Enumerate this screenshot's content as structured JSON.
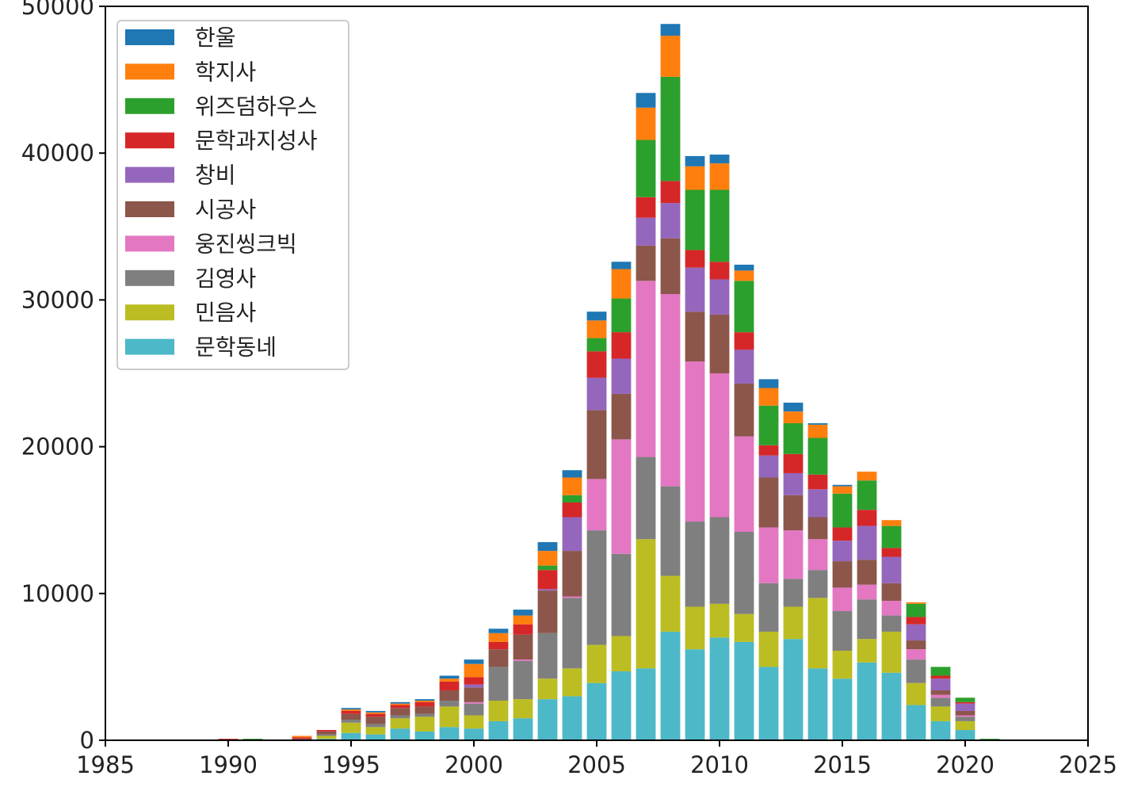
{
  "chart_data": {
    "type": "bar",
    "stacked": true,
    "x": [
      1990,
      1991,
      1993,
      1994,
      1995,
      1996,
      1997,
      1998,
      1999,
      2000,
      2001,
      2002,
      2003,
      2004,
      2005,
      2006,
      2007,
      2008,
      2009,
      2010,
      2011,
      2012,
      2013,
      2014,
      2015,
      2016,
      2017,
      2018,
      2019,
      2020,
      2021
    ],
    "xlim": [
      1985,
      2025
    ],
    "ylim": [
      0,
      50000
    ],
    "xticks": [
      1985,
      1990,
      1995,
      2000,
      2005,
      2010,
      2015,
      2020,
      2025
    ],
    "yticks": [
      0,
      10000,
      20000,
      30000,
      40000,
      50000
    ],
    "grid": false,
    "legend_position": "upper-left",
    "series": [
      {
        "name": "문학동네",
        "color": "#4db8c8",
        "values": [
          0,
          0,
          0,
          100,
          500,
          400,
          800,
          600,
          900,
          800,
          1300,
          1500,
          2800,
          3000,
          3900,
          4700,
          4900,
          7400,
          6200,
          7000,
          6700,
          5000,
          6900,
          4900,
          4200,
          5300,
          4600,
          2400,
          1300,
          700,
          0
        ]
      },
      {
        "name": "민음사",
        "color": "#bcbd22",
        "values": [
          0,
          0,
          0,
          200,
          700,
          500,
          700,
          1000,
          1400,
          900,
          1400,
          1300,
          1400,
          1900,
          2600,
          2400,
          8800,
          3800,
          2900,
          2300,
          1900,
          2400,
          2200,
          4800,
          1900,
          1600,
          2800,
          1500,
          1000,
          600,
          0
        ]
      },
      {
        "name": "김영사",
        "color": "#7f7f7f",
        "values": [
          0,
          0,
          0,
          100,
          200,
          200,
          200,
          200,
          400,
          800,
          2300,
          2600,
          3100,
          4800,
          7800,
          5600,
          5600,
          6100,
          5800,
          5900,
          5600,
          3300,
          1900,
          1900,
          2700,
          2700,
          1100,
          1600,
          600,
          300,
          0
        ]
      },
      {
        "name": "웅진씽크빅",
        "color": "#e377c2",
        "values": [
          0,
          0,
          0,
          0,
          0,
          0,
          0,
          0,
          0,
          100,
          0,
          100,
          0,
          100,
          3500,
          7800,
          12000,
          13100,
          10900,
          9800,
          6500,
          3800,
          3300,
          2100,
          1600,
          1000,
          1000,
          700,
          200,
          100,
          0
        ]
      },
      {
        "name": "시공사",
        "color": "#8c564b",
        "values": [
          0,
          0,
          100,
          200,
          400,
          500,
          500,
          500,
          700,
          1000,
          1200,
          1700,
          2900,
          3100,
          4700,
          3100,
          2400,
          3800,
          3400,
          4000,
          3600,
          3400,
          2400,
          1500,
          1800,
          1700,
          1200,
          600,
          300,
          300,
          0
        ]
      },
      {
        "name": "창비",
        "color": "#9467bd",
        "values": [
          0,
          0,
          0,
          0,
          0,
          0,
          0,
          0,
          0,
          200,
          0,
          0,
          100,
          2300,
          2200,
          2400,
          1900,
          2400,
          3000,
          2400,
          2300,
          1500,
          1500,
          1900,
          1400,
          2300,
          1800,
          1100,
          800,
          500,
          0
        ]
      },
      {
        "name": "문학과지성사",
        "color": "#d62728",
        "values": [
          100,
          0,
          100,
          100,
          200,
          200,
          200,
          300,
          600,
          500,
          500,
          700,
          1300,
          1000,
          1800,
          1800,
          1400,
          1500,
          1200,
          1200,
          1200,
          700,
          1300,
          1000,
          900,
          1100,
          600,
          500,
          200,
          100,
          0
        ]
      },
      {
        "name": "위즈덤하우스",
        "color": "#2ca02c",
        "values": [
          0,
          100,
          0,
          0,
          0,
          0,
          0,
          0,
          0,
          0,
          0,
          0,
          300,
          500,
          900,
          2300,
          3900,
          7100,
          4100,
          4900,
          3500,
          2700,
          2100,
          2500,
          2300,
          2000,
          1500,
          900,
          600,
          300,
          100
        ]
      },
      {
        "name": "학지사",
        "color": "#ff7f0e",
        "values": [
          0,
          0,
          100,
          0,
          100,
          100,
          100,
          100,
          200,
          900,
          600,
          600,
          1000,
          1200,
          1200,
          2000,
          2200,
          2800,
          1600,
          1800,
          700,
          1200,
          800,
          900,
          500,
          600,
          400,
          100,
          0,
          0,
          0
        ]
      },
      {
        "name": "한울",
        "color": "#1f77b4",
        "values": [
          0,
          0,
          0,
          0,
          100,
          100,
          100,
          100,
          200,
          300,
          300,
          400,
          600,
          500,
          600,
          500,
          1000,
          800,
          700,
          600,
          400,
          600,
          600,
          100,
          100,
          0,
          0,
          0,
          0,
          0,
          0
        ]
      }
    ]
  }
}
